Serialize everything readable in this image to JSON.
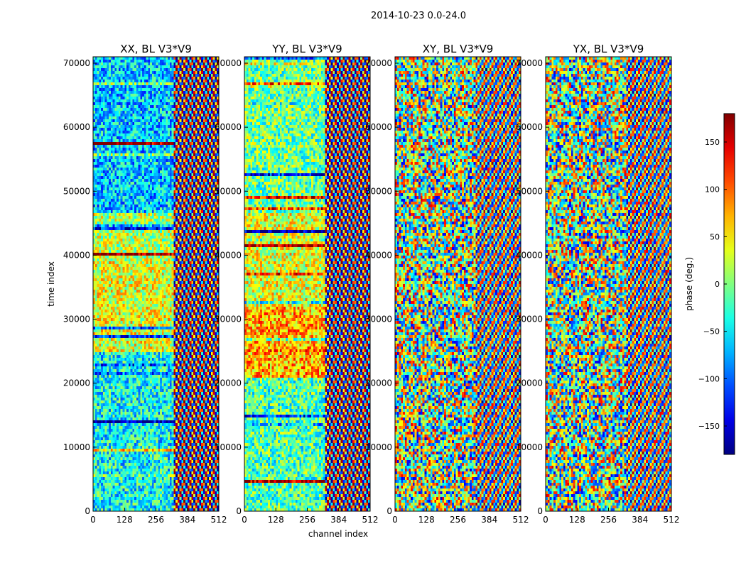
{
  "figure": {
    "suptitle": "2014-10-23 0.0-24.0"
  },
  "chart_data": {
    "type": "heatmap",
    "xlabel": "channel index",
    "ylabel": "time index",
    "xlim": [
      0,
      512
    ],
    "ylim": [
      0,
      71000
    ],
    "xticks": [
      0,
      128,
      256,
      384,
      512
    ],
    "yticks": [
      0,
      10000,
      20000,
      30000,
      40000,
      50000,
      60000,
      70000
    ],
    "panels": [
      {
        "title": "XX, BL V3*V9",
        "polarization": "XX"
      },
      {
        "title": "YY, BL V3*V9",
        "polarization": "YY"
      },
      {
        "title": "XY, BL V3*V9",
        "polarization": "XY"
      },
      {
        "title": "YX, BL V3*V9",
        "polarization": "YX"
      }
    ],
    "colorbar": {
      "label": "phase (deg.)",
      "range": [
        -180,
        180
      ],
      "ticks": [
        -150,
        -100,
        -50,
        0,
        50,
        100,
        150
      ],
      "tick_labels": [
        "−150",
        "−100",
        "−50",
        "0",
        "50",
        "100",
        "150"
      ],
      "colormap": "jet"
    }
  }
}
